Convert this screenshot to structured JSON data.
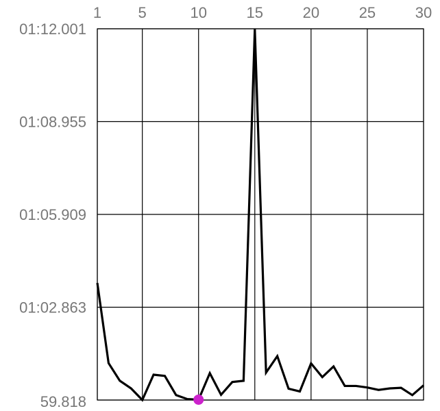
{
  "chart_data": {
    "type": "line",
    "x_ticks": [
      1,
      5,
      10,
      15,
      20,
      25,
      30
    ],
    "y_ticks": [
      "59.818",
      "01:02.863",
      "01:05.909",
      "01:08.955",
      "01:12.001"
    ],
    "y_tick_values": [
      59.818,
      62.863,
      65.909,
      68.955,
      72.001
    ],
    "xlim": [
      1,
      30
    ],
    "ylim": [
      59.818,
      72.001
    ],
    "x_axis_position": "top",
    "grid": true,
    "series": [
      {
        "color": "#000000",
        "x": [
          1,
          2,
          3,
          4,
          5,
          6,
          7,
          8,
          9,
          10,
          11,
          12,
          13,
          14,
          15,
          16,
          17,
          18,
          19,
          20,
          21,
          22,
          23,
          24,
          25,
          26,
          27,
          28,
          29,
          30
        ],
        "y": [
          63.66,
          61.03,
          60.45,
          60.2,
          59.82,
          60.65,
          60.61,
          59.98,
          59.85,
          59.83,
          60.7,
          59.99,
          60.41,
          60.45,
          71.99,
          60.72,
          61.26,
          60.19,
          60.1,
          61.02,
          60.57,
          60.92,
          60.28,
          60.28,
          60.23,
          60.15,
          60.2,
          60.22,
          59.98,
          60.3
        ]
      }
    ],
    "highlight_point": {
      "x": 10,
      "y": 59.83,
      "color": "#cc22cc"
    },
    "colors": {
      "grid": "#000000",
      "axis": "#000000",
      "x_tick_label": "#777777",
      "y_tick_label": "#777777"
    }
  }
}
